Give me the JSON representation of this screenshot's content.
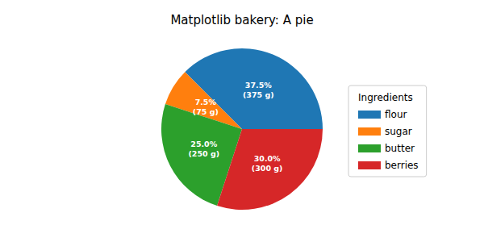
{
  "chart_data": {
    "type": "pie",
    "title": "Matplotlib bakery: A pie",
    "categories": [
      "flour",
      "sugar",
      "butter",
      "berries"
    ],
    "values": [
      375,
      75,
      250,
      300
    ],
    "value_labels": [
      "37.5%\n(375 g)",
      "7.5%\n(75 g)",
      "25.0%\n(250 g)",
      "30.0%\n(300 g)"
    ],
    "colors": [
      "#1f77b4",
      "#ff7f0e",
      "#2ca02c",
      "#d62728"
    ],
    "data_labels": true,
    "legend": "right",
    "legend_title": "Ingredients"
  }
}
